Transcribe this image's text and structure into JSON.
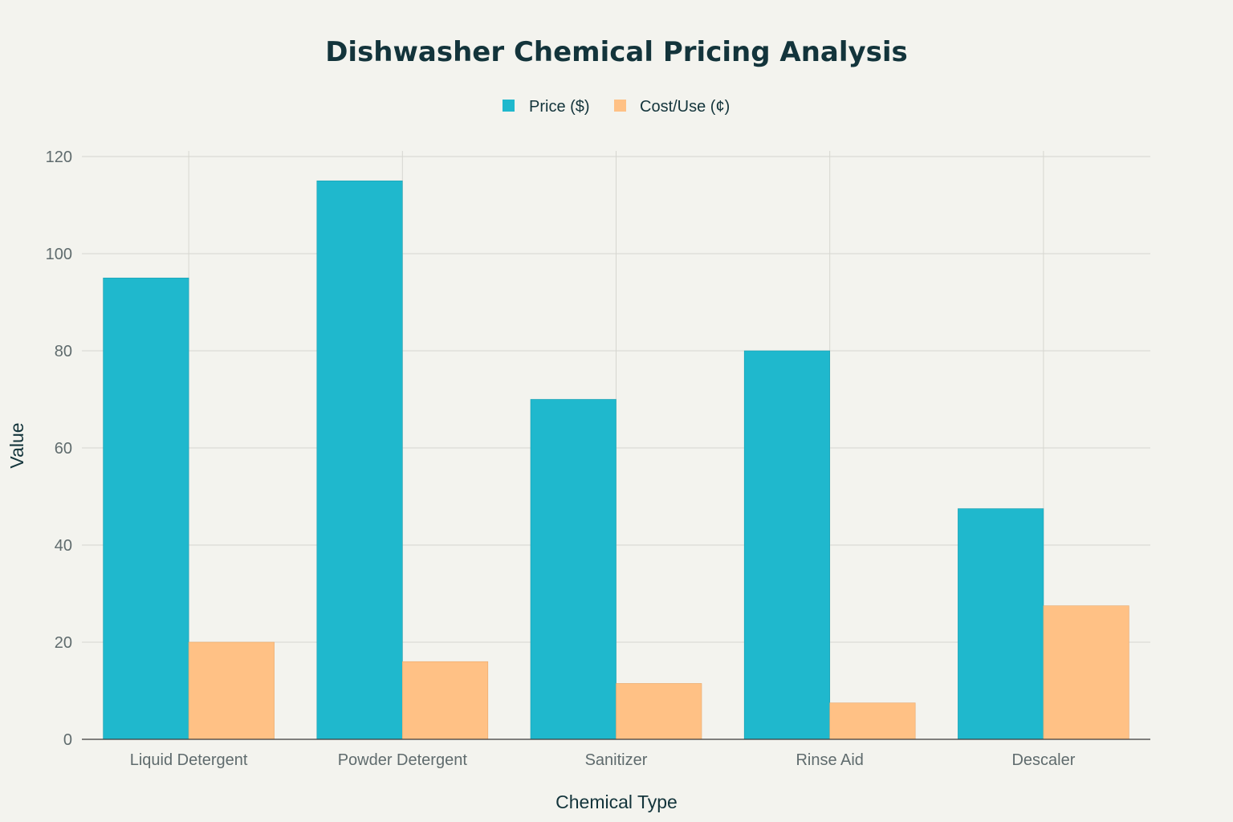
{
  "chart_data": {
    "type": "bar",
    "title": "Dishwasher Chemical Pricing Analysis",
    "xlabel": "Chemical Type",
    "ylabel": "Value",
    "categories": [
      "Liquid Detergent",
      "Powder Detergent",
      "Sanitizer",
      "Rinse Aid",
      "Descaler"
    ],
    "series": [
      {
        "name": "Price ($)",
        "color": "#1fb8cd",
        "values": [
          95,
          115,
          70,
          80,
          47.5
        ]
      },
      {
        "name": "Cost/Use (¢)",
        "color": "#ffc185",
        "values": [
          20,
          16,
          11.5,
          7.5,
          27.5
        ]
      }
    ],
    "ylim": [
      0,
      120
    ],
    "yticks": [
      0,
      20,
      40,
      60,
      80,
      100,
      120
    ],
    "grid": true,
    "legend_position": "top-center"
  }
}
